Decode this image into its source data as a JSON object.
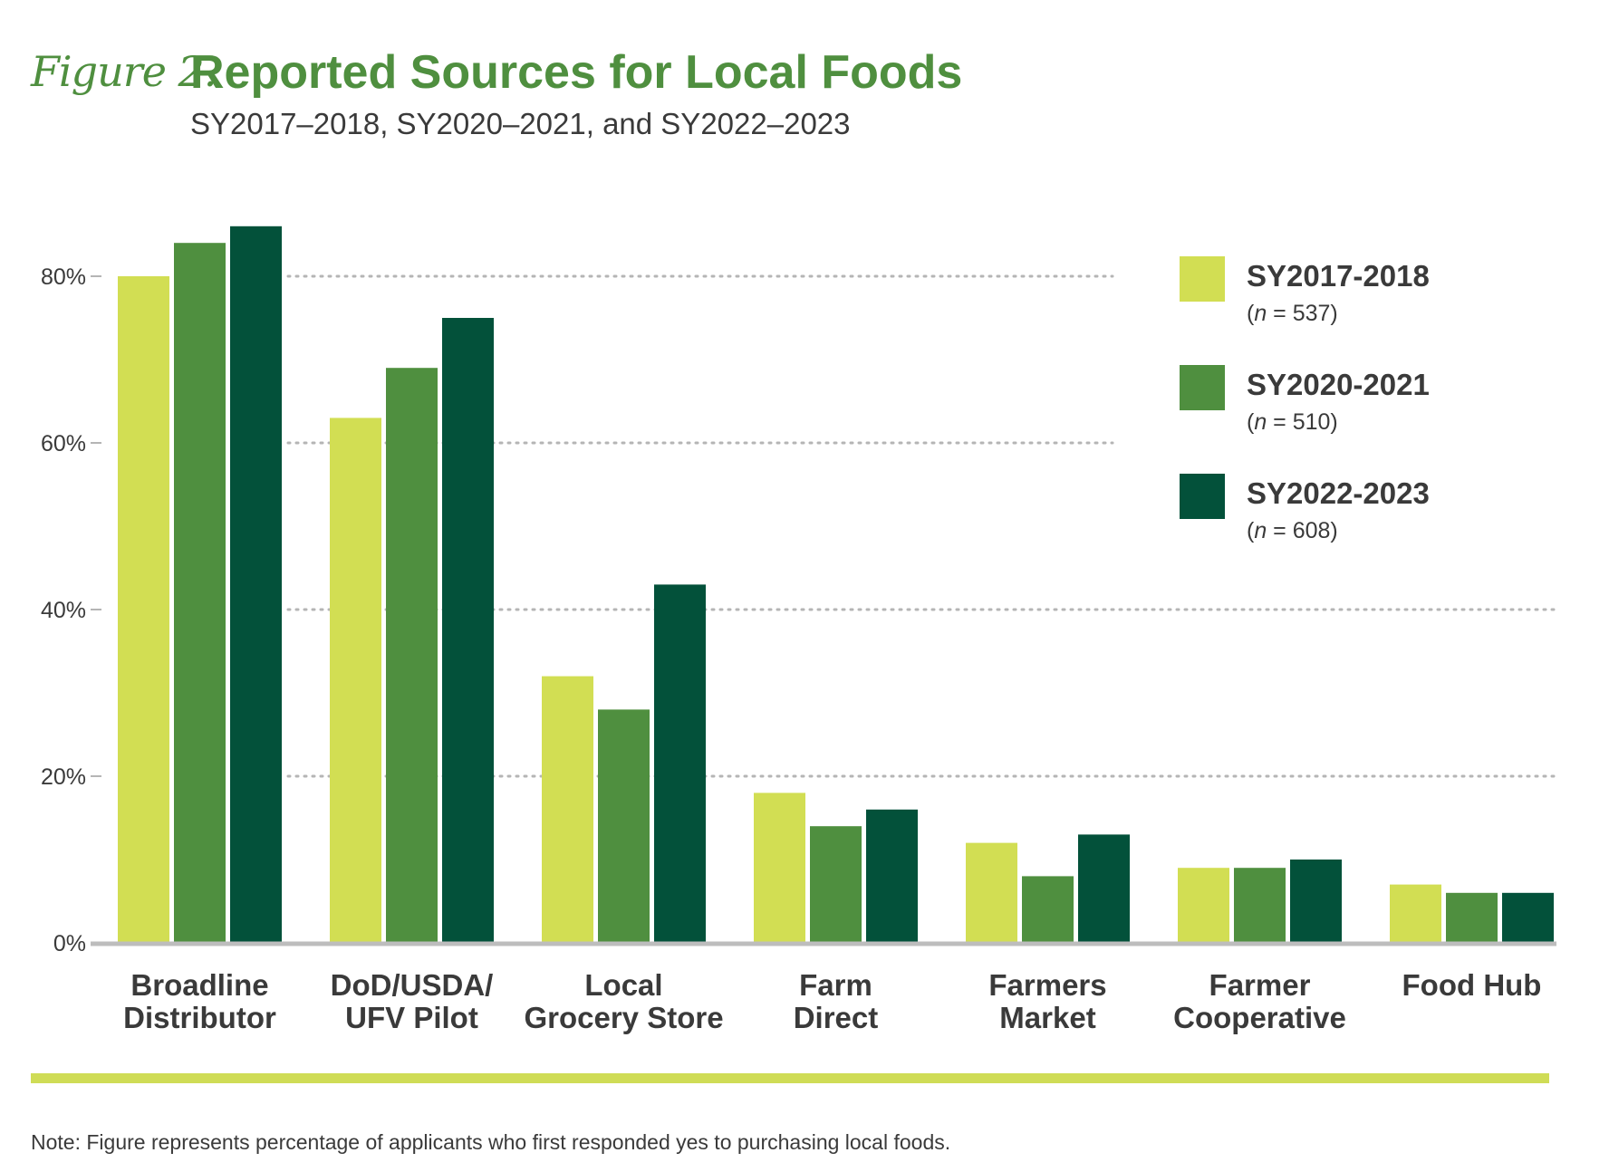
{
  "figure": {
    "label": "Figure 2.",
    "title": "Reported Sources for Local Foods",
    "subtitle": "SY2017–2018, SY2020–2021, and SY2022–2023",
    "note": "Note: Figure represents percentage of applicants who first responded yes to purchasing local foods."
  },
  "chart_data": {
    "type": "bar",
    "title": "Reported Sources for Local Foods",
    "subtitle": "SY2017–2018, SY2020–2021, and SY2022–2023",
    "xlabel": "",
    "ylabel": "",
    "ylim": [
      0,
      80
    ],
    "yticks": [
      0,
      20,
      40,
      60,
      80
    ],
    "ytick_labels": [
      "0%",
      "20%",
      "40%",
      "60%",
      "80%"
    ],
    "grid": "horizontal dotted",
    "legend_position": "top-right",
    "categories": [
      [
        "Broadline",
        "Distributor"
      ],
      [
        "DoD/USDA/",
        "UFV Pilot"
      ],
      [
        "Local",
        "Grocery Store"
      ],
      [
        "Farm",
        "Direct"
      ],
      [
        "Farmers",
        "Market"
      ],
      [
        "Farmer",
        "Cooperative"
      ],
      [
        "Food Hub"
      ]
    ],
    "series": [
      {
        "name": "SY2017-2018",
        "n_label": "n",
        "n_value": "= 537)",
        "color": "#d2de53",
        "values": [
          80,
          63,
          32,
          18,
          12,
          9,
          7
        ]
      },
      {
        "name": "SY2020-2021",
        "n_label": "n",
        "n_value": "= 510)",
        "color": "#4f8f3f",
        "values": [
          84,
          69,
          28,
          14,
          8,
          9,
          6
        ]
      },
      {
        "name": "SY2022-2023",
        "n_label": "n",
        "n_value": "= 608)",
        "color": "#03513a",
        "values": [
          86,
          75,
          43,
          16,
          13,
          10,
          6
        ]
      }
    ]
  }
}
